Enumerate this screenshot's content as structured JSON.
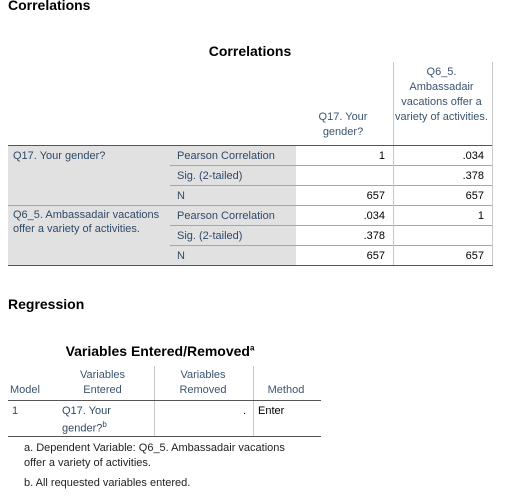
{
  "sections": {
    "correlations": "Correlations",
    "regression": "Regression"
  },
  "corr_table": {
    "title": "Correlations",
    "col_headers": [
      "Q17.  Your gender?",
      "Q6_5.  Ambassadair vacations offer a variety of activities."
    ],
    "rows": [
      {
        "var": "Q17.  Your gender?",
        "stats": [
          {
            "label": "Pearson Correlation",
            "v1": "1",
            "v2": ".034"
          },
          {
            "label": "Sig. (2-tailed)",
            "v1": "",
            "v2": ".378"
          },
          {
            "label": "N",
            "v1": "657",
            "v2": "657"
          }
        ]
      },
      {
        "var": "Q6_5.  Ambassadair vacations offer a variety of activities.",
        "stats": [
          {
            "label": "Pearson Correlation",
            "v1": ".034",
            "v2": "1"
          },
          {
            "label": "Sig. (2-tailed)",
            "v1": ".378",
            "v2": ""
          },
          {
            "label": "N",
            "v1": "657",
            "v2": "657"
          }
        ]
      }
    ]
  },
  "vars_table": {
    "title": "Variables Entered/Removed",
    "title_sup": "a",
    "headers": {
      "model": "Model",
      "entered": "Variables Entered",
      "removed": "Variables Removed",
      "method": "Method"
    },
    "row": {
      "model": "1",
      "entered": "Q17.  Your gender?",
      "entered_sup": "b",
      "removed": ".",
      "method": "Enter"
    }
  },
  "footnotes": {
    "a": "a. Dependent Variable: Q6_5.  Ambassadair vacations offer a variety of activities.",
    "b": "b. All requested variables entered."
  }
}
